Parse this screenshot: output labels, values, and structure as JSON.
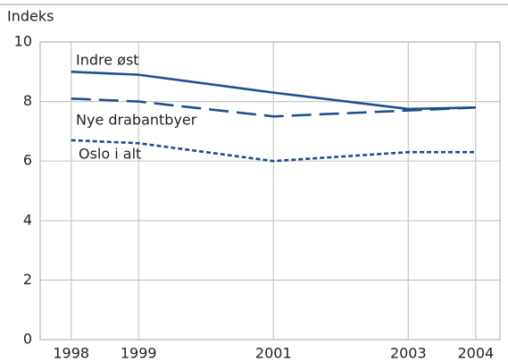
{
  "chart_data": {
    "type": "line",
    "ylabel": "Indeks",
    "x": [
      1998,
      1999,
      2001,
      2003,
      2004
    ],
    "xlim": [
      1997.54,
      2004.36
    ],
    "xticks": [
      1998,
      1999,
      2001,
      2003,
      2004
    ],
    "ylim": [
      0,
      10
    ],
    "yticks": [
      0,
      2,
      4,
      6,
      8,
      10
    ],
    "grid": true,
    "series": [
      {
        "name": "Indre øst",
        "color": "#1d4f8f",
        "dash": "solid",
        "values": [
          9.0,
          8.9,
          8.3,
          7.75,
          7.8
        ]
      },
      {
        "name": "Nye drabantbyer",
        "color": "#1d4f8f",
        "dash": "long",
        "values": [
          8.1,
          8.0,
          7.5,
          7.7,
          7.8
        ]
      },
      {
        "name": "Oslo i alt",
        "color": "#1d4f8f",
        "dash": "short",
        "values": [
          6.7,
          6.6,
          6.0,
          6.3,
          6.3
        ]
      }
    ]
  }
}
